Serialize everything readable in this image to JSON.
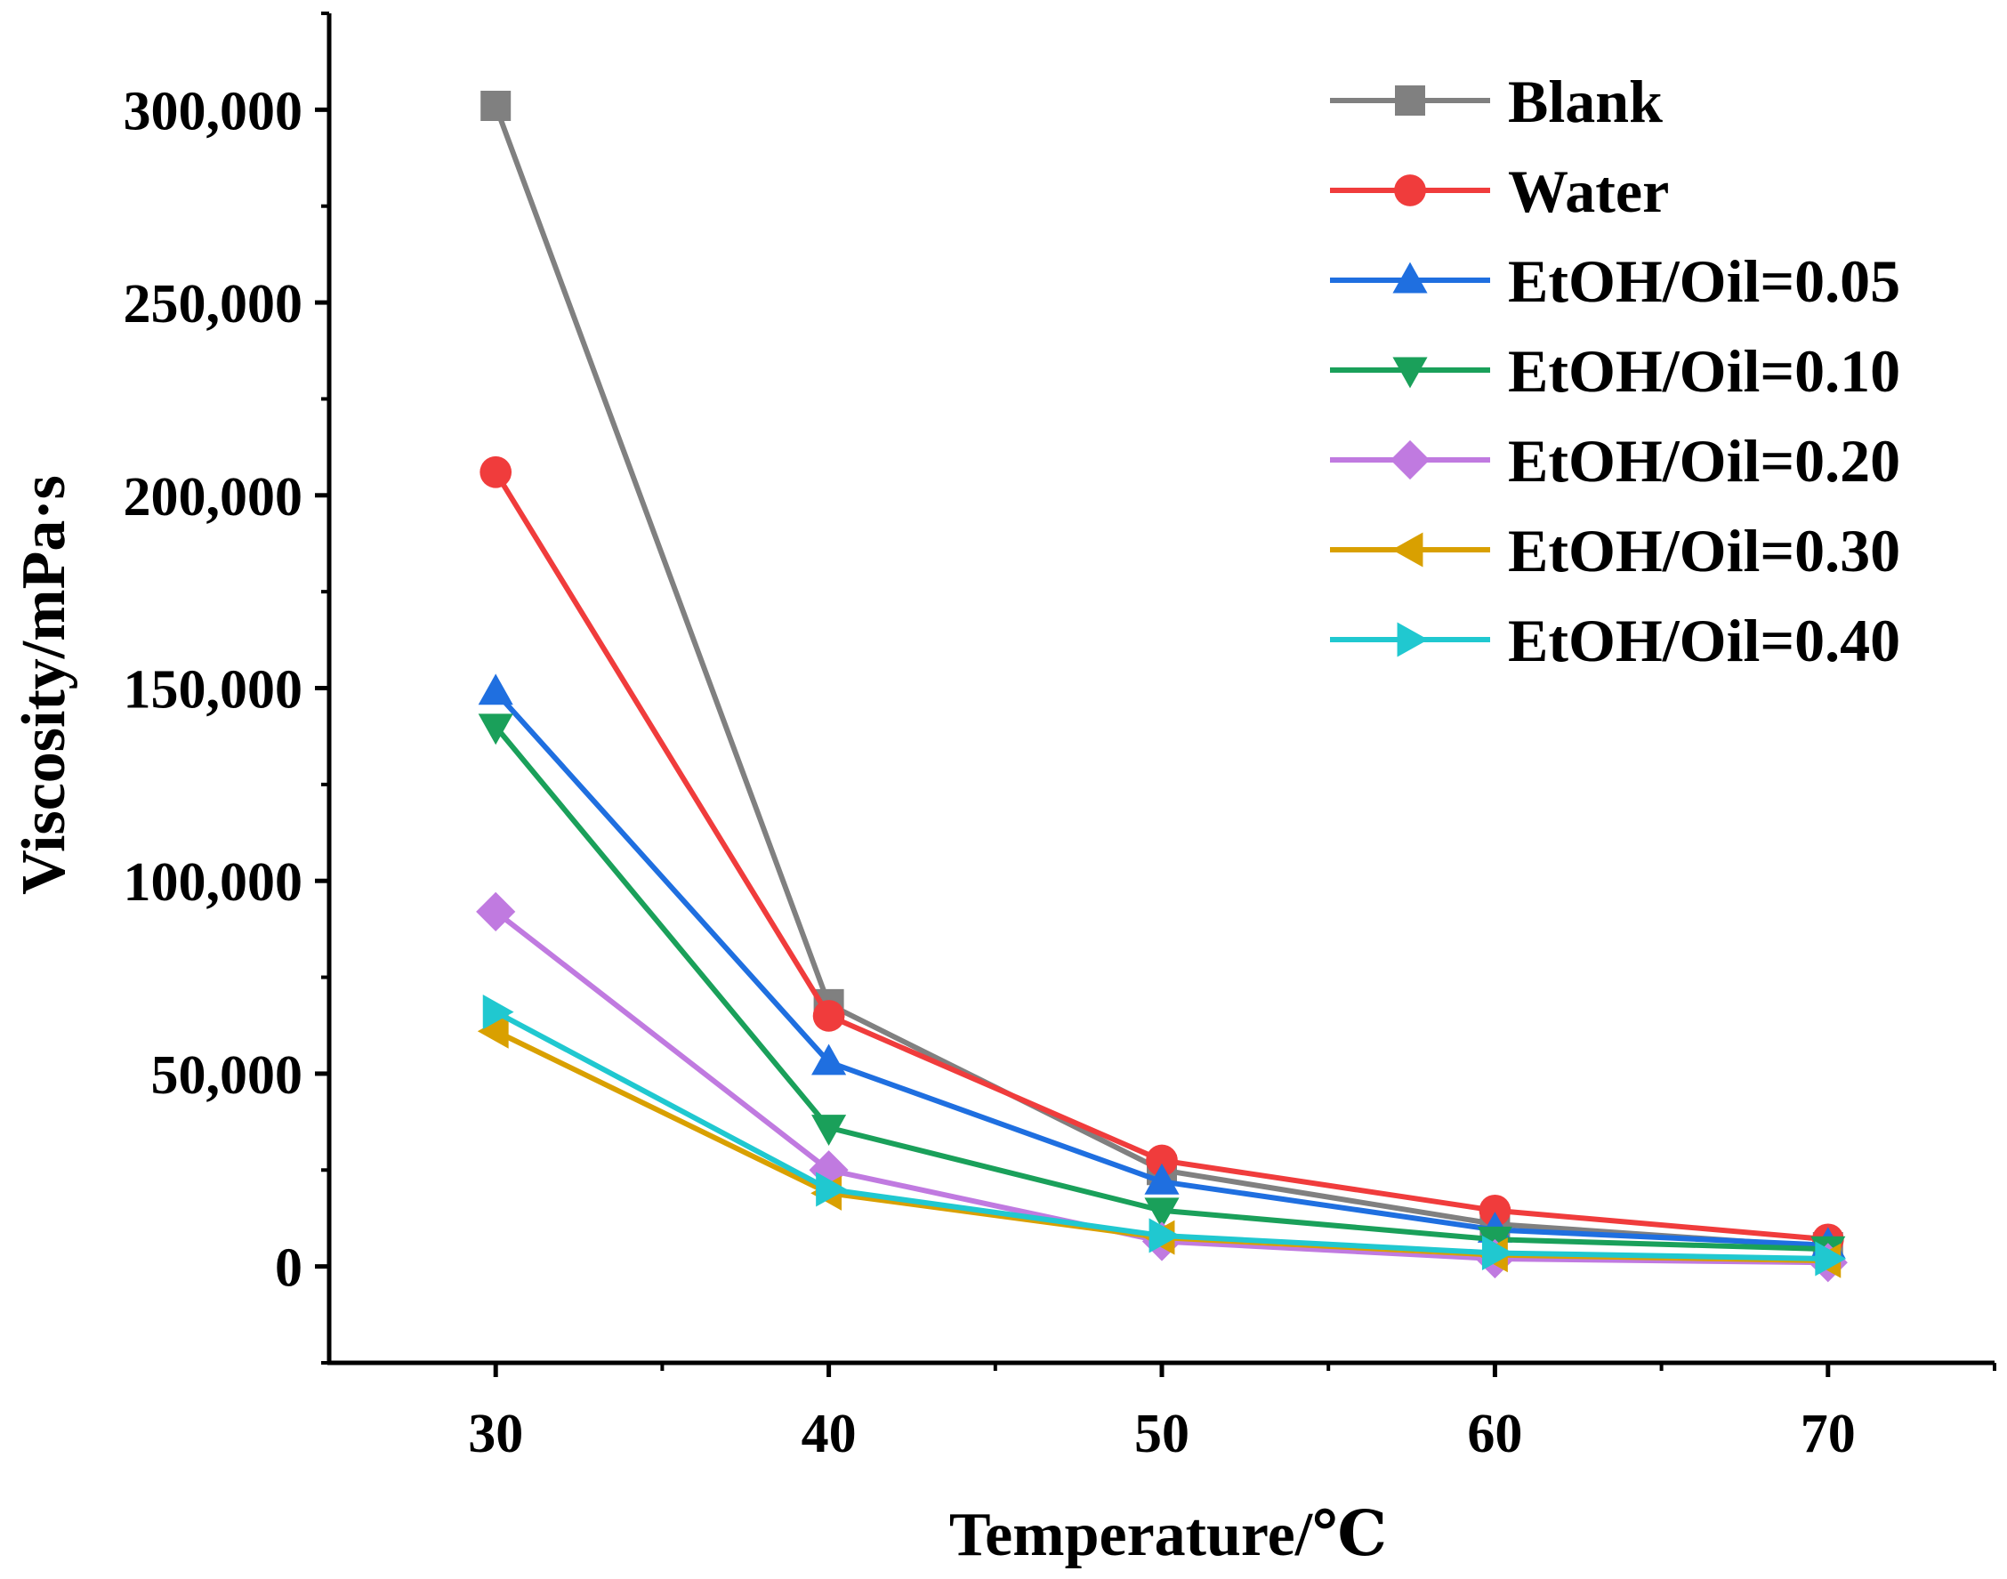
{
  "chart_data": {
    "type": "line",
    "title": "",
    "xlabel": "Temperature/℃",
    "ylabel": "Viscosity/mPa·s",
    "x": [
      30,
      40,
      50,
      60,
      70
    ],
    "xlim": [
      25,
      75
    ],
    "ylim": [
      -25000,
      325000
    ],
    "xticks": [
      30,
      40,
      50,
      60,
      70
    ],
    "xtick_labels": [
      "30",
      "40",
      "50",
      "60",
      "70"
    ],
    "yticks": [
      0,
      50000,
      100000,
      150000,
      200000,
      250000,
      300000
    ],
    "ytick_labels": [
      "0",
      "50,000",
      "100,000",
      "150,000",
      "200,000",
      "250,000",
      "300,000"
    ],
    "grid": false,
    "legend_position": "top-right",
    "series": [
      {
        "name": "Blank",
        "color": "#808080",
        "marker": "square",
        "values": [
          301000,
          68000,
          25000,
          11000,
          5000
        ]
      },
      {
        "name": "Water",
        "color": "#f03c3c",
        "marker": "circle",
        "values": [
          206000,
          65000,
          27500,
          14500,
          7000
        ]
      },
      {
        "name": "EtOH/Oil=0.05",
        "color": "#1f6fe0",
        "marker": "triangle-up",
        "values": [
          149000,
          53000,
          22000,
          9500,
          5500
        ]
      },
      {
        "name": "EtOH/Oil=0.10",
        "color": "#1aa05a",
        "marker": "triangle-down",
        "values": [
          140000,
          36000,
          14500,
          7000,
          4500
        ]
      },
      {
        "name": "EtOH/Oil=0.20",
        "color": "#c07ae0",
        "marker": "diamond",
        "values": [
          92000,
          25000,
          6500,
          2000,
          1000
        ]
      },
      {
        "name": "EtOH/Oil=0.30",
        "color": "#d9a000",
        "marker": "triangle-left",
        "values": [
          61000,
          19000,
          7500,
          3000,
          1500
        ]
      },
      {
        "name": "EtOH/Oil=0.40",
        "color": "#20c8d0",
        "marker": "triangle-right",
        "values": [
          66000,
          20000,
          8000,
          3500,
          2000
        ]
      }
    ]
  }
}
